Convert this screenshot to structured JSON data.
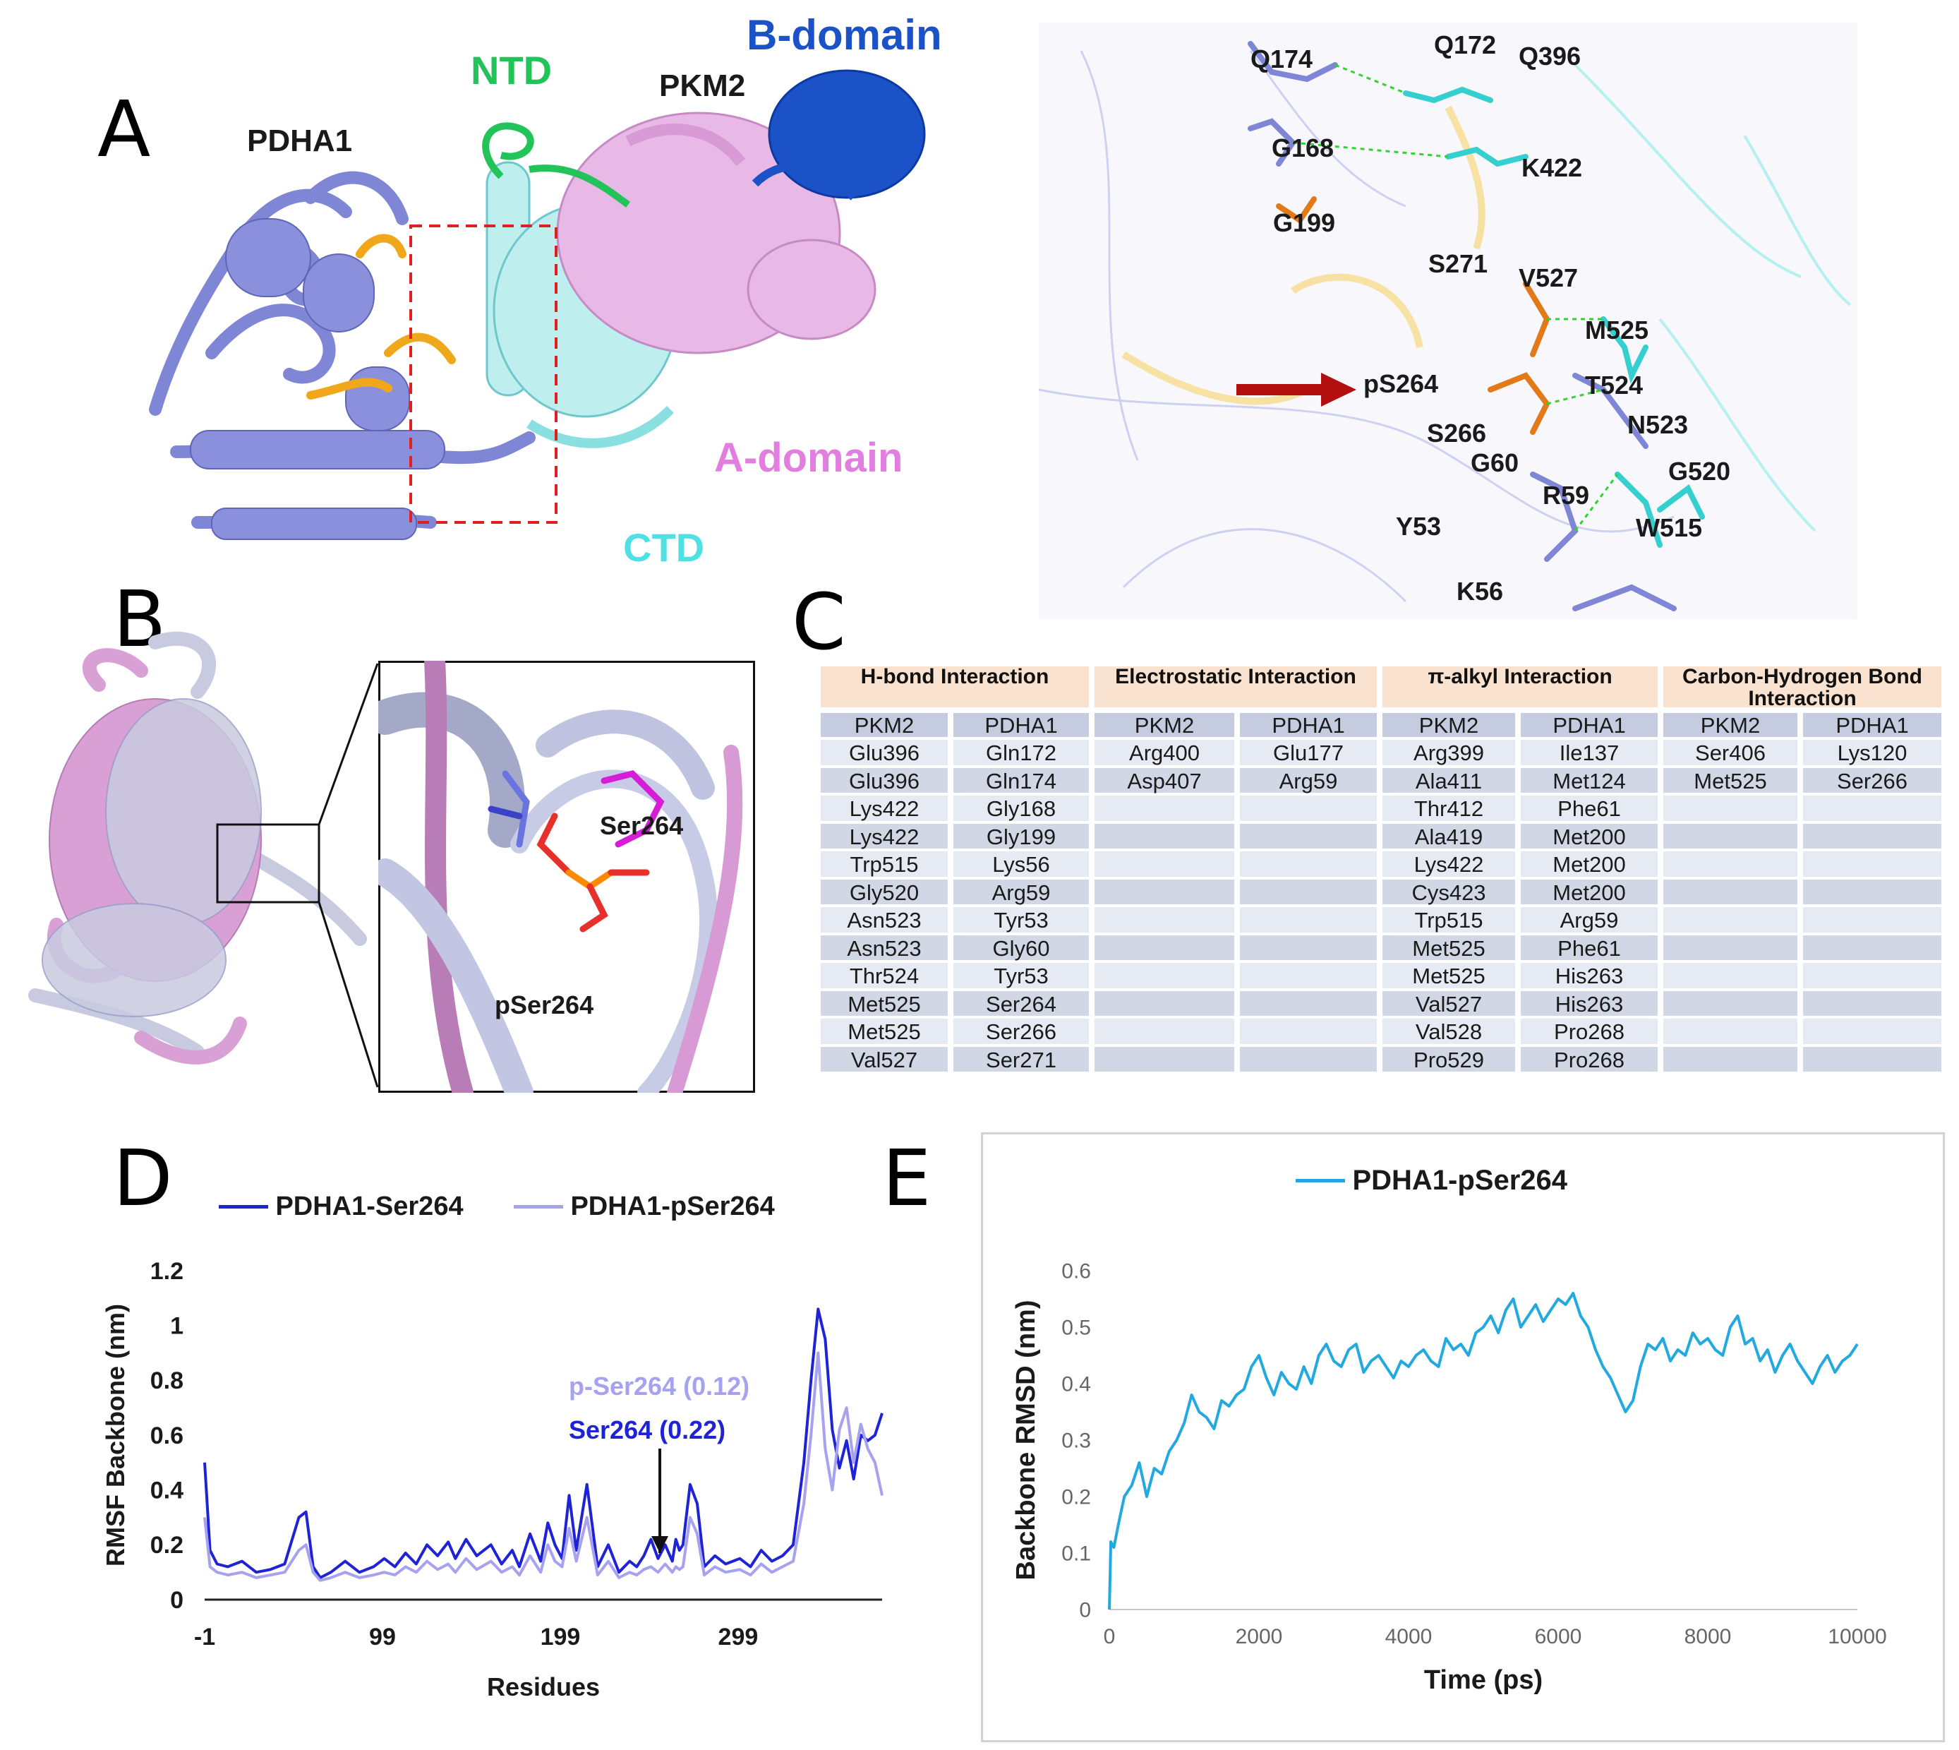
{
  "panels": {
    "A": {
      "letter": "A",
      "labels": {
        "pdha1": "PDHA1",
        "ntd": "NTD",
        "pkm2": "PKM2",
        "bdomain": "B-domain",
        "adomain": "A-domain",
        "ctd": "CTD"
      },
      "residues": [
        "Q174",
        "Q172",
        "Q396",
        "G168",
        "K422",
        "G199",
        "S271",
        "V527",
        "M525",
        "pS264",
        "T524",
        "N523",
        "S266",
        "G60",
        "G520",
        "R59",
        "W515",
        "Y53",
        "K56"
      ]
    },
    "B": {
      "letter": "B",
      "labels": {
        "ser": "Ser264",
        "pser": "pSer264"
      }
    },
    "C": {
      "letter": "C",
      "headers": [
        "H-bond Interaction",
        "Electrostatic Interaction",
        "π-alkyl Interaction",
        "Carbon-Hydrogen Bond Interaction"
      ],
      "subheaders": [
        "PKM2",
        "PDHA1",
        "PKM2",
        "PDHA1",
        "PKM2",
        "PDHA1",
        "PKM2",
        "PDHA1"
      ],
      "rows": [
        [
          "Glu396",
          "Gln172",
          "Arg400",
          "Glu177",
          "Arg399",
          "Ile137",
          "Ser406",
          "Lys120"
        ],
        [
          "Glu396",
          "Gln174",
          "Asp407",
          "Arg59",
          "Ala411",
          "Met124",
          "Met525",
          "Ser266"
        ],
        [
          "Lys422",
          "Gly168",
          "",
          "",
          "Thr412",
          "Phe61",
          "",
          ""
        ],
        [
          "Lys422",
          "Gly199",
          "",
          "",
          "Ala419",
          "Met200",
          "",
          ""
        ],
        [
          "Trp515",
          "Lys56",
          "",
          "",
          "Lys422",
          "Met200",
          "",
          ""
        ],
        [
          "Gly520",
          "Arg59",
          "",
          "",
          "Cys423",
          "Met200",
          "",
          ""
        ],
        [
          "Asn523",
          "Tyr53",
          "",
          "",
          "Trp515",
          "Arg59",
          "",
          ""
        ],
        [
          "Asn523",
          "Gly60",
          "",
          "",
          "Met525",
          "Phe61",
          "",
          ""
        ],
        [
          "Thr524",
          "Tyr53",
          "",
          "",
          "Met525",
          "His263",
          "",
          ""
        ],
        [
          "Met525",
          "Ser264",
          "",
          "",
          "Val527",
          "His263",
          "",
          ""
        ],
        [
          "Met525",
          "Ser266",
          "",
          "",
          "Val528",
          "Pro268",
          "",
          ""
        ],
        [
          "Val527",
          "Ser271",
          "",
          "",
          "Pro529",
          "Pro268",
          "",
          ""
        ]
      ]
    },
    "D": {
      "letter": "D",
      "legend": [
        "PDHA1-Ser264",
        "PDHA1-pSer264"
      ],
      "annotations": [
        "p-Ser264 (0.12)",
        "Ser264 (0.22)"
      ]
    },
    "E": {
      "letter": "E"
    }
  },
  "colors": {
    "ser264": "#1f23d6",
    "pser264": "#a6a2f0",
    "rmsd": "#22a9df",
    "ntd": "#22c45a",
    "bdomain": "#1b52c8",
    "adomain": "#e27ee0",
    "ctd": "#4fe0e4"
  },
  "chart_data": [
    {
      "type": "line",
      "title": "",
      "xlabel": "Residues",
      "ylabel": "RMSF Backbone (nm)",
      "xticks": [
        "-1",
        "99",
        "199",
        "299"
      ],
      "yticks": [
        "0",
        "0.2",
        "0.4",
        "0.6",
        "0.8",
        "1",
        "1.2"
      ],
      "xlim": [
        -1,
        380
      ],
      "ylim": [
        0,
        1.2
      ],
      "series": [
        {
          "name": "PDHA1-Ser264",
          "x": [
            -1,
            2,
            6,
            12,
            20,
            28,
            36,
            44,
            52,
            56,
            60,
            64,
            70,
            78,
            86,
            94,
            100,
            106,
            112,
            118,
            124,
            130,
            136,
            140,
            146,
            152,
            160,
            166,
            172,
            176,
            182,
            188,
            192,
            196,
            200,
            204,
            208,
            214,
            220,
            226,
            232,
            238,
            242,
            246,
            250,
            254,
            258,
            262,
            264,
            266,
            268,
            272,
            276,
            280,
            286,
            292,
            300,
            306,
            312,
            318,
            324,
            330,
            336,
            340,
            344,
            348,
            352,
            356,
            360,
            364,
            368,
            372,
            376,
            380
          ],
          "values": [
            0.5,
            0.18,
            0.13,
            0.12,
            0.14,
            0.1,
            0.11,
            0.13,
            0.3,
            0.32,
            0.12,
            0.08,
            0.1,
            0.14,
            0.1,
            0.12,
            0.15,
            0.12,
            0.17,
            0.13,
            0.2,
            0.16,
            0.21,
            0.15,
            0.22,
            0.16,
            0.2,
            0.13,
            0.18,
            0.12,
            0.24,
            0.14,
            0.28,
            0.2,
            0.15,
            0.38,
            0.18,
            0.42,
            0.12,
            0.2,
            0.1,
            0.14,
            0.12,
            0.16,
            0.22,
            0.15,
            0.2,
            0.14,
            0.22,
            0.18,
            0.2,
            0.42,
            0.35,
            0.12,
            0.16,
            0.13,
            0.15,
            0.12,
            0.18,
            0.14,
            0.16,
            0.2,
            0.5,
            0.8,
            1.06,
            0.95,
            0.62,
            0.48,
            0.58,
            0.44,
            0.6,
            0.58,
            0.6,
            0.68
          ]
        },
        {
          "name": "PDHA1-pSer264",
          "x": [
            -1,
            2,
            6,
            12,
            20,
            28,
            36,
            44,
            52,
            56,
            60,
            64,
            70,
            78,
            86,
            94,
            100,
            106,
            112,
            118,
            124,
            130,
            136,
            140,
            146,
            152,
            160,
            166,
            172,
            176,
            182,
            188,
            192,
            196,
            200,
            204,
            208,
            214,
            220,
            226,
            232,
            238,
            242,
            246,
            250,
            254,
            258,
            262,
            264,
            266,
            268,
            272,
            276,
            280,
            286,
            292,
            300,
            306,
            312,
            318,
            324,
            330,
            336,
            340,
            344,
            348,
            352,
            356,
            360,
            364,
            368,
            372,
            376,
            380
          ],
          "values": [
            0.3,
            0.12,
            0.1,
            0.09,
            0.1,
            0.08,
            0.09,
            0.1,
            0.18,
            0.2,
            0.1,
            0.07,
            0.08,
            0.1,
            0.08,
            0.09,
            0.1,
            0.09,
            0.12,
            0.1,
            0.14,
            0.11,
            0.13,
            0.1,
            0.15,
            0.11,
            0.14,
            0.1,
            0.12,
            0.09,
            0.16,
            0.1,
            0.2,
            0.14,
            0.12,
            0.26,
            0.14,
            0.3,
            0.09,
            0.14,
            0.08,
            0.1,
            0.09,
            0.11,
            0.12,
            0.1,
            0.13,
            0.1,
            0.12,
            0.11,
            0.12,
            0.3,
            0.24,
            0.09,
            0.12,
            0.1,
            0.11,
            0.09,
            0.13,
            0.1,
            0.12,
            0.14,
            0.35,
            0.6,
            0.9,
            0.55,
            0.4,
            0.62,
            0.7,
            0.5,
            0.64,
            0.55,
            0.5,
            0.38
          ]
        }
      ]
    },
    {
      "type": "line",
      "title": "",
      "legend": "PDHA1-pSer264",
      "xlabel": "Time (ps)",
      "ylabel": "Backbone RMSD (nm)",
      "xticks": [
        "0",
        "2000",
        "4000",
        "6000",
        "8000",
        "10000"
      ],
      "yticks": [
        "0",
        "0.1",
        "0.2",
        "0.3",
        "0.4",
        "0.5",
        "0.6"
      ],
      "xlim": [
        0,
        10000
      ],
      "ylim": [
        0,
        0.6
      ],
      "series": [
        {
          "name": "PDHA1-pSer264",
          "x": [
            0,
            20,
            60,
            120,
            200,
            300,
            400,
            500,
            600,
            700,
            800,
            900,
            1000,
            1100,
            1200,
            1300,
            1400,
            1500,
            1600,
            1700,
            1800,
            1900,
            2000,
            2100,
            2200,
            2300,
            2400,
            2500,
            2600,
            2700,
            2800,
            2900,
            3000,
            3100,
            3200,
            3300,
            3400,
            3500,
            3600,
            3700,
            3800,
            3900,
            4000,
            4100,
            4200,
            4300,
            4400,
            4500,
            4600,
            4700,
            4800,
            4900,
            5000,
            5100,
            5200,
            5300,
            5400,
            5500,
            5600,
            5700,
            5800,
            5900,
            6000,
            6100,
            6200,
            6300,
            6400,
            6500,
            6600,
            6700,
            6800,
            6900,
            7000,
            7100,
            7200,
            7300,
            7400,
            7500,
            7600,
            7700,
            7800,
            7900,
            8000,
            8100,
            8200,
            8300,
            8400,
            8500,
            8600,
            8700,
            8800,
            8900,
            9000,
            9100,
            9200,
            9300,
            9400,
            9500,
            9600,
            9700,
            9800,
            9900,
            10000
          ],
          "values": [
            0,
            0.12,
            0.11,
            0.15,
            0.2,
            0.22,
            0.26,
            0.2,
            0.25,
            0.24,
            0.28,
            0.3,
            0.33,
            0.38,
            0.35,
            0.34,
            0.32,
            0.37,
            0.36,
            0.38,
            0.39,
            0.43,
            0.45,
            0.41,
            0.38,
            0.42,
            0.4,
            0.39,
            0.43,
            0.4,
            0.45,
            0.47,
            0.44,
            0.43,
            0.46,
            0.47,
            0.42,
            0.44,
            0.45,
            0.43,
            0.41,
            0.44,
            0.43,
            0.45,
            0.46,
            0.44,
            0.43,
            0.48,
            0.46,
            0.47,
            0.45,
            0.49,
            0.5,
            0.52,
            0.49,
            0.53,
            0.55,
            0.5,
            0.52,
            0.54,
            0.51,
            0.53,
            0.55,
            0.54,
            0.56,
            0.52,
            0.5,
            0.46,
            0.43,
            0.41,
            0.38,
            0.35,
            0.37,
            0.43,
            0.47,
            0.46,
            0.48,
            0.44,
            0.46,
            0.45,
            0.49,
            0.47,
            0.48,
            0.46,
            0.45,
            0.5,
            0.52,
            0.47,
            0.48,
            0.44,
            0.46,
            0.42,
            0.45,
            0.47,
            0.44,
            0.42,
            0.4,
            0.43,
            0.45,
            0.42,
            0.44,
            0.45,
            0.47
          ]
        }
      ]
    }
  ]
}
